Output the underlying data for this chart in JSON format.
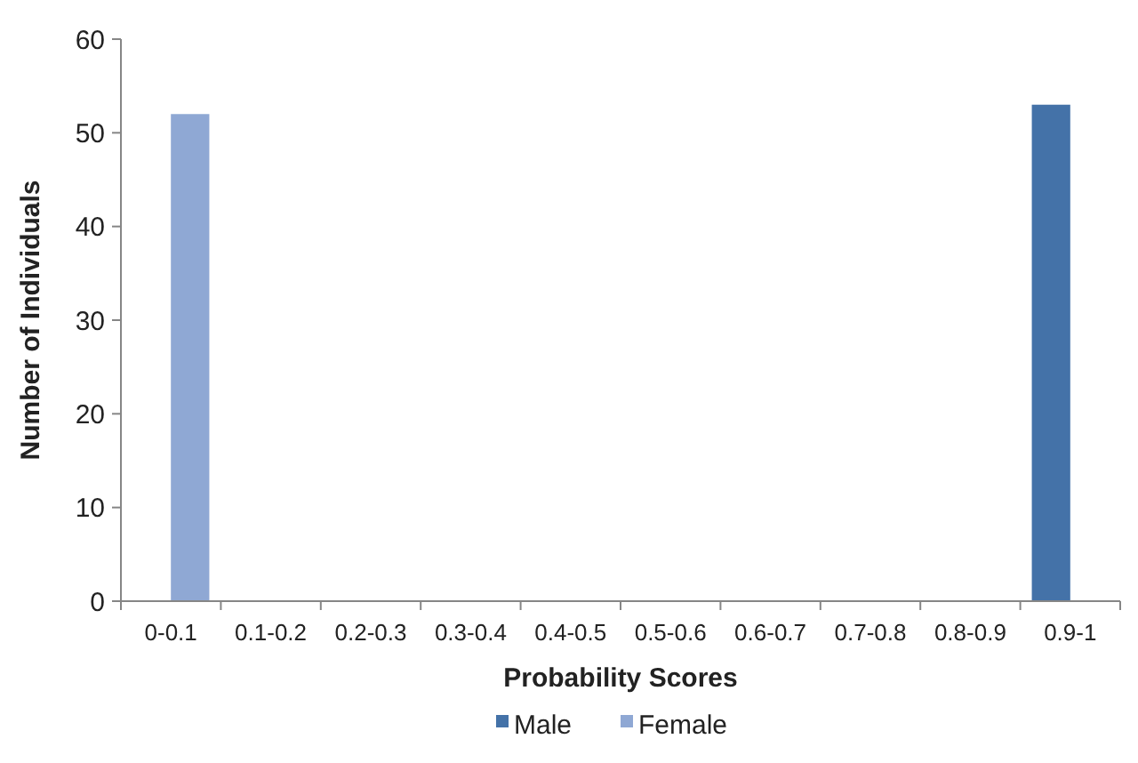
{
  "chart_data": {
    "type": "bar",
    "xlabel": "Probability Scores",
    "ylabel": "Number of Individuals",
    "categories": [
      "0-0.1",
      "0.1-0.2",
      "0.2-0.3",
      "0.3-0.4",
      "0.4-0.5",
      "0.5-0.6",
      "0.6-0.7",
      "0.7-0.8",
      "0.8-0.9",
      "0.9-1"
    ],
    "series": [
      {
        "name": "Male",
        "color": "#4472a8",
        "values": [
          0,
          0,
          0,
          0,
          0,
          0,
          0,
          0,
          0,
          53
        ]
      },
      {
        "name": "Female",
        "color": "#8fa8d4",
        "values": [
          52,
          0,
          0,
          0,
          0,
          0,
          0,
          0,
          0,
          0
        ]
      }
    ],
    "ylim": [
      0,
      60
    ],
    "yticks": [
      0,
      10,
      20,
      30,
      40,
      50,
      60
    ],
    "grid": false,
    "legend": "bottom"
  }
}
